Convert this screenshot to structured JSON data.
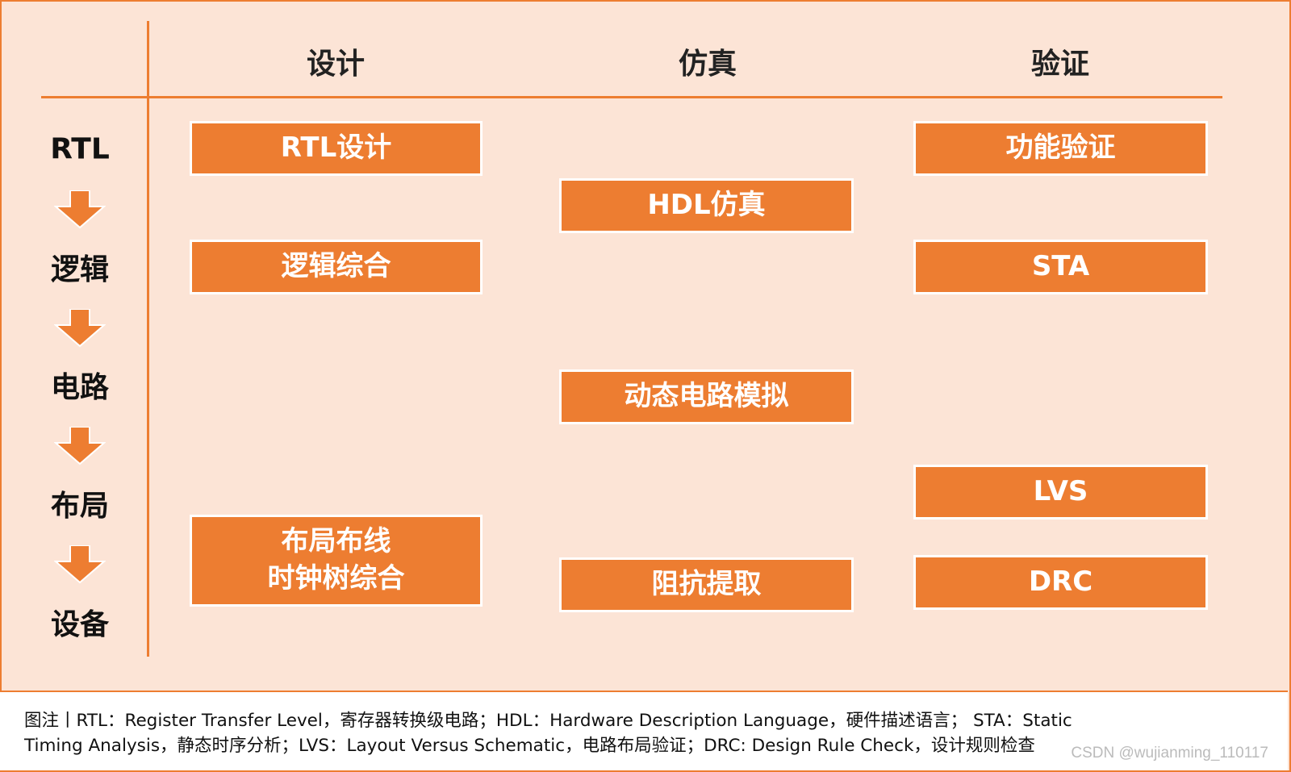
{
  "colors": {
    "accent": "#ED7D31",
    "background": "#FCE4D6",
    "box_text": "#FFFFFF"
  },
  "columns": [
    "设计",
    "仿真",
    "验证"
  ],
  "stages": [
    "RTL",
    "逻辑",
    "电路",
    "布局",
    "设备"
  ],
  "arrow_icon": "down-arrow-icon",
  "design": {
    "rtl_design": "RTL设计",
    "logic_synthesis": "逻辑综合",
    "place_route_line1": "布局布线",
    "place_route_line2": "时钟树综合"
  },
  "simulation": {
    "hdl_sim": "HDL仿真",
    "dynamic_circuit_sim": "动态电路模拟",
    "impedance_extraction": "阻抗提取"
  },
  "verification": {
    "functional": "功能验证",
    "sta": "STA",
    "lvs": "LVS",
    "drc": "DRC"
  },
  "caption": {
    "line1": "图注丨RTL：Register Transfer Level，寄存器转换级电路；HDL：Hardware Description Language，硬件描述语言； STA：Static",
    "line2": "Timing Analysis，静态时序分析；LVS：Layout Versus Schematic，电路布局验证；DRC: Design Rule Check，设计规则检查"
  },
  "watermark": "CSDN @wujianming_110117"
}
